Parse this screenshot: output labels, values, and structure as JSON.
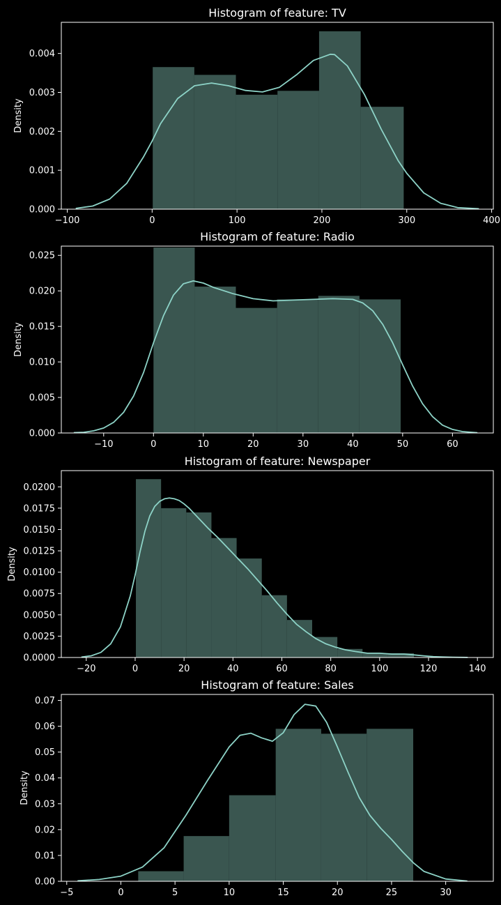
{
  "figure": {
    "background": "#000000",
    "text_color": "#ffffff"
  },
  "chart_data": [
    {
      "type": "histogram",
      "title": "Histogram of feature: TV",
      "xlabel": "",
      "ylabel": "Density",
      "xlim": [
        -107,
        402
      ],
      "ylim": [
        0,
        0.0048
      ],
      "xticks": [
        -100,
        0,
        100,
        200,
        300,
        400
      ],
      "xtick_labels": [
        "−100",
        "0",
        "100",
        "200",
        "300",
        "400"
      ],
      "yticks": [
        0,
        0.001,
        0.002,
        0.003,
        0.004
      ],
      "ytick_labels": [
        "0.000",
        "0.001",
        "0.002",
        "0.003",
        "0.004"
      ],
      "bar_color": "#3a5650",
      "kde_color": "#8dd3c7",
      "bins": [
        {
          "x0": 0.7,
          "x1": 49.7,
          "density": 0.00365
        },
        {
          "x0": 49.7,
          "x1": 98.7,
          "density": 0.00345
        },
        {
          "x0": 98.7,
          "x1": 147.7,
          "density": 0.00294
        },
        {
          "x0": 147.7,
          "x1": 196.7,
          "density": 0.00304
        },
        {
          "x0": 196.7,
          "x1": 245.7,
          "density": 0.00457
        },
        {
          "x0": 245.7,
          "x1": 296.4,
          "density": 0.00263
        }
      ],
      "kde": {
        "x": [
          -90,
          -70,
          -50,
          -30,
          -10,
          0,
          10,
          30,
          50,
          70,
          90,
          110,
          130,
          150,
          170,
          190,
          210,
          215,
          230,
          250,
          270,
          290,
          300,
          320,
          340,
          360,
          385
        ],
        "y": [
          2e-05,
          8e-05,
          0.00026,
          0.00066,
          0.00135,
          0.00175,
          0.0022,
          0.00284,
          0.00317,
          0.00324,
          0.00317,
          0.00305,
          0.00301,
          0.00313,
          0.00345,
          0.00382,
          0.00398,
          0.00397,
          0.00368,
          0.00295,
          0.00205,
          0.00124,
          0.00092,
          0.00042,
          0.00015,
          4e-05,
          1e-05
        ]
      }
    },
    {
      "type": "histogram",
      "title": "Histogram of feature: Radio",
      "xlabel": "",
      "ylabel": "Density",
      "xlim": [
        -18.5,
        68.2
      ],
      "ylim": [
        0,
        0.0263
      ],
      "xticks": [
        -10,
        0,
        10,
        20,
        30,
        40,
        50,
        60
      ],
      "xtick_labels": [
        "−10",
        "0",
        "10",
        "20",
        "30",
        "40",
        "50",
        "60"
      ],
      "yticks": [
        0,
        0.005,
        0.01,
        0.015,
        0.02,
        0.025
      ],
      "ytick_labels": [
        "0.000",
        "0.005",
        "0.010",
        "0.015",
        "0.020",
        "0.025"
      ],
      "bar_color": "#3a5650",
      "kde_color": "#8dd3c7",
      "bins": [
        {
          "x0": 0,
          "x1": 8.27,
          "density": 0.0261
        },
        {
          "x0": 8.27,
          "x1": 16.53,
          "density": 0.0206
        },
        {
          "x0": 16.53,
          "x1": 24.8,
          "density": 0.0176
        },
        {
          "x0": 24.8,
          "x1": 33.07,
          "density": 0.0188
        },
        {
          "x0": 33.07,
          "x1": 41.33,
          "density": 0.0193
        },
        {
          "x0": 41.33,
          "x1": 49.6,
          "density": 0.0188
        }
      ],
      "kde": {
        "x": [
          -16,
          -14,
          -12,
          -10,
          -8,
          -6,
          -4,
          -2,
          0,
          2,
          4,
          6,
          8,
          10,
          12,
          16,
          20,
          24,
          28,
          32,
          36,
          40,
          42,
          44,
          46,
          48,
          50,
          52,
          54,
          56,
          58,
          60,
          62,
          65
        ],
        "y": [
          5e-05,
          0.0001,
          0.0003,
          0.0007,
          0.0015,
          0.0029,
          0.0052,
          0.0085,
          0.0127,
          0.0165,
          0.0194,
          0.021,
          0.0214,
          0.0211,
          0.0205,
          0.0196,
          0.0189,
          0.0186,
          0.0187,
          0.0188,
          0.0189,
          0.0188,
          0.0183,
          0.0172,
          0.0153,
          0.0127,
          0.0096,
          0.0066,
          0.0041,
          0.0023,
          0.0011,
          0.0005,
          0.0002,
          4e-05
        ]
      }
    },
    {
      "type": "histogram",
      "title": "Histogram of feature: Newspaper",
      "xlabel": "",
      "ylabel": "Density",
      "xlim": [
        -30.2,
        146.5
      ],
      "ylim": [
        0,
        0.0219
      ],
      "xticks": [
        -20,
        0,
        20,
        40,
        60,
        80,
        100,
        120,
        140
      ],
      "xtick_labels": [
        "−20",
        "0",
        "20",
        "40",
        "60",
        "80",
        "100",
        "120",
        "140"
      ],
      "yticks": [
        0,
        0.0025,
        0.005,
        0.0075,
        0.01,
        0.0125,
        0.015,
        0.0175,
        0.02
      ],
      "ytick_labels": [
        "0.0000",
        "0.0025",
        "0.0050",
        "0.0075",
        "0.0100",
        "0.0125",
        "0.0150",
        "0.0175",
        "0.0200"
      ],
      "bar_color": "#3a5650",
      "kde_color": "#8dd3c7",
      "bins": [
        {
          "x0": 0.3,
          "x1": 10.6,
          "density": 0.0209
        },
        {
          "x0": 10.6,
          "x1": 20.9,
          "density": 0.0175
        },
        {
          "x0": 20.9,
          "x1": 31.2,
          "density": 0.017
        },
        {
          "x0": 31.2,
          "x1": 41.5,
          "density": 0.014
        },
        {
          "x0": 41.5,
          "x1": 51.8,
          "density": 0.0116
        },
        {
          "x0": 51.8,
          "x1": 62.1,
          "density": 0.0073
        },
        {
          "x0": 62.1,
          "x1": 72.4,
          "density": 0.0044
        },
        {
          "x0": 72.4,
          "x1": 82.7,
          "density": 0.0024
        },
        {
          "x0": 82.7,
          "x1": 93.0,
          "density": 0.001
        },
        {
          "x0": 93.0,
          "x1": 103.3,
          "density": 0.0005
        },
        {
          "x0": 103.3,
          "x1": 114.0,
          "density": 0.0005
        }
      ],
      "kde": {
        "x": [
          -22,
          -18,
          -14,
          -10,
          -6,
          -2,
          0,
          2,
          4,
          6,
          8,
          10,
          12,
          14,
          16,
          18,
          20,
          22,
          26,
          30,
          34,
          38,
          42,
          46,
          50,
          54,
          58,
          62,
          66,
          70,
          74,
          78,
          82,
          86,
          90,
          95,
          100,
          105,
          110,
          114,
          118,
          122,
          126,
          130,
          136
        ],
        "y": [
          5e-05,
          0.0002,
          0.0006,
          0.0016,
          0.0036,
          0.0072,
          0.0097,
          0.0124,
          0.0148,
          0.0166,
          0.0177,
          0.0183,
          0.0186,
          0.0187,
          0.0186,
          0.0184,
          0.018,
          0.0175,
          0.0163,
          0.0151,
          0.014,
          0.0128,
          0.0116,
          0.0104,
          0.0091,
          0.0078,
          0.0064,
          0.0051,
          0.0039,
          0.003,
          0.0022,
          0.0016,
          0.0012,
          0.0009,
          0.0007,
          0.0005,
          0.0005,
          0.0004,
          0.0004,
          0.0003,
          0.0002,
          0.0001,
          6e-05,
          3e-05,
          1e-05
        ]
      }
    },
    {
      "type": "histogram",
      "title": "Histogram of feature: Sales",
      "xlabel": "",
      "ylabel": "Density",
      "xlim": [
        -5.5,
        34.4
      ],
      "ylim": [
        0,
        0.0723
      ],
      "xticks": [
        -5,
        0,
        5,
        10,
        15,
        20,
        25,
        30
      ],
      "xtick_labels": [
        "−5",
        "0",
        "5",
        "10",
        "15",
        "20",
        "25",
        "30"
      ],
      "yticks": [
        0,
        0.01,
        0.02,
        0.03,
        0.04,
        0.05,
        0.06,
        0.07
      ],
      "ytick_labels": [
        "0.00",
        "0.01",
        "0.02",
        "0.03",
        "0.04",
        "0.05",
        "0.06",
        "0.07"
      ],
      "bar_color": "#3a5650",
      "kde_color": "#8dd3c7",
      "bins": [
        {
          "x0": 1.6,
          "x1": 5.8,
          "density": 0.0039
        },
        {
          "x0": 5.8,
          "x1": 10.0,
          "density": 0.0175
        },
        {
          "x0": 10.0,
          "x1": 14.3,
          "density": 0.0333
        },
        {
          "x0": 14.3,
          "x1": 18.5,
          "density": 0.059
        },
        {
          "x0": 18.5,
          "x1": 22.7,
          "density": 0.0571
        },
        {
          "x0": 22.7,
          "x1": 27.0,
          "density": 0.059
        }
      ],
      "extra_bins_note": "",
      "kde": {
        "x": [
          -4,
          -2,
          0,
          2,
          4,
          6,
          8,
          10,
          11,
          12,
          13,
          14,
          15,
          16,
          17,
          18,
          19,
          20,
          21,
          22,
          23,
          24,
          25,
          26,
          27,
          28,
          30,
          32
        ],
        "y": [
          0.0002,
          0.0007,
          0.002,
          0.0055,
          0.013,
          0.0255,
          0.039,
          0.052,
          0.0565,
          0.0573,
          0.0555,
          0.0542,
          0.0575,
          0.0645,
          0.0685,
          0.0678,
          0.0615,
          0.052,
          0.042,
          0.0325,
          0.0255,
          0.0205,
          0.0162,
          0.0115,
          0.0072,
          0.0038,
          0.0009,
          0.0001
        ]
      }
    }
  ]
}
